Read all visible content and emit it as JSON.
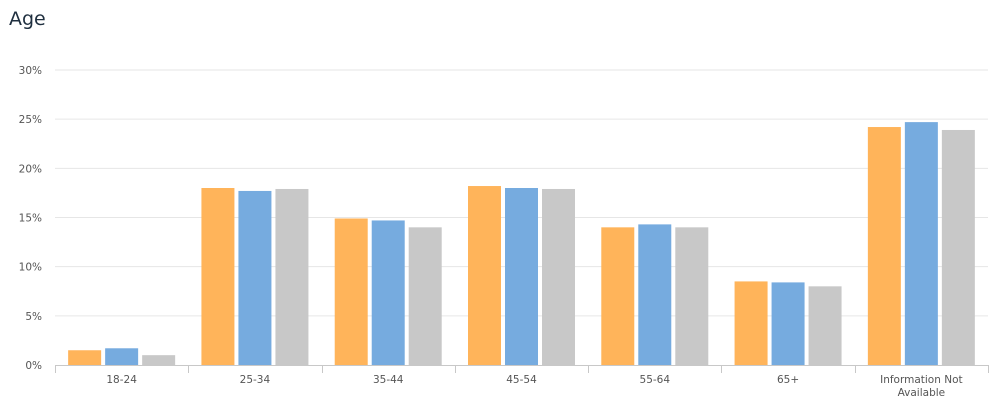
{
  "title": "Age",
  "chart_data": {
    "type": "bar",
    "categories": [
      [
        "18-24"
      ],
      [
        "25-34"
      ],
      [
        "35-44"
      ],
      [
        "45-54"
      ],
      [
        "55-64"
      ],
      [
        "65+"
      ],
      [
        "Information Not",
        "Available"
      ]
    ],
    "series": [
      {
        "color": "#FFB45A",
        "values": [
          1.5,
          18.0,
          14.9,
          18.2,
          14.0,
          8.5,
          24.2
        ]
      },
      {
        "color": "#76ABDF",
        "values": [
          1.7,
          17.7,
          14.7,
          18.0,
          14.3,
          8.4,
          24.7
        ]
      },
      {
        "color": "#C8C8C8",
        "values": [
          1.0,
          17.9,
          14.0,
          17.9,
          14.0,
          8.0,
          23.9
        ]
      }
    ],
    "ylim": [
      0,
      30
    ],
    "yticks": [
      "0%",
      "5%",
      "10%",
      "15%",
      "20%",
      "25%",
      "30%"
    ],
    "ytick_values": [
      0,
      5,
      10,
      15,
      20,
      25,
      30
    ],
    "grid": true,
    "legend": "none"
  }
}
